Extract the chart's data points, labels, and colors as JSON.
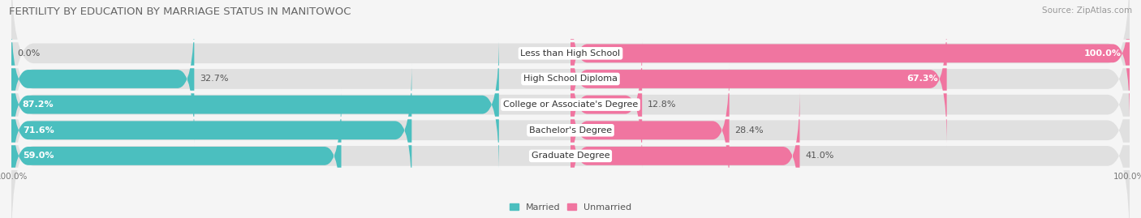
{
  "title": "FERTILITY BY EDUCATION BY MARRIAGE STATUS IN MANITOWOC",
  "source": "Source: ZipAtlas.com",
  "categories": [
    "Less than High School",
    "High School Diploma",
    "College or Associate's Degree",
    "Bachelor's Degree",
    "Graduate Degree"
  ],
  "married": [
    0.0,
    32.7,
    87.2,
    71.6,
    59.0
  ],
  "unmarried": [
    100.0,
    67.3,
    12.8,
    28.4,
    41.0
  ],
  "married_color": "#4BBFBF",
  "unmarried_color": "#F075A0",
  "bar_bg_color": "#E0E0E0",
  "row_bg_color": "#EAEAEA",
  "bg_color": "#F5F5F5",
  "title_fontsize": 9.5,
  "label_fontsize": 8.0,
  "tick_fontsize": 7.5,
  "source_fontsize": 7.5
}
